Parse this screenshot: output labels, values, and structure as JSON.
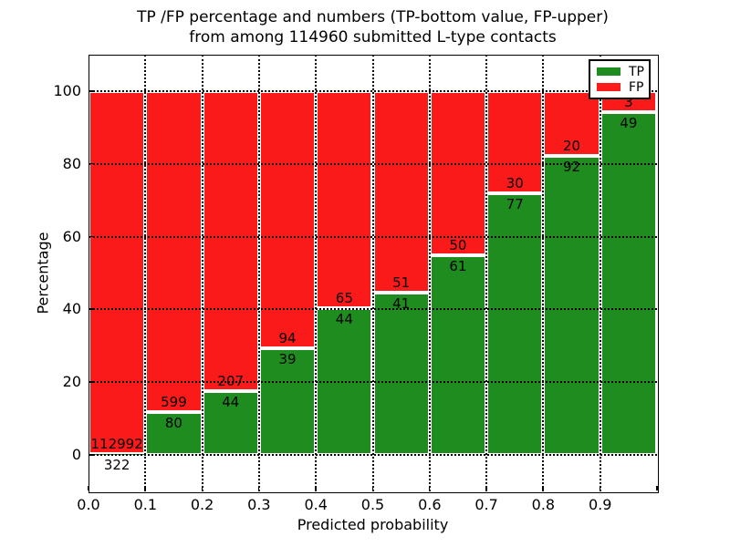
{
  "chart_data": {
    "type": "bar",
    "stacked": true,
    "normalized_to_percent": true,
    "title_line1": "TP /FP percentage and numbers (TP-bottom value, FP-upper)",
    "title_line2": "from among 114960 submitted L-type contacts",
    "xlabel": "Predicted probability",
    "ylabel": "Percentage",
    "total_contacts_shown_in_title": 114960,
    "bin_width": 0.1,
    "x_tick_labels": [
      "0.0",
      "0.1",
      "0.2",
      "0.3",
      "0.4",
      "0.5",
      "0.6",
      "0.7",
      "0.8",
      "0.9"
    ],
    "y_tick_values": [
      0,
      20,
      40,
      60,
      80,
      100
    ],
    "y_tick_labels": [
      "0",
      "20",
      "40",
      "60",
      "80",
      "100"
    ],
    "ylim": [
      -10,
      110
    ],
    "series": [
      {
        "name": "TP",
        "color": "#1e8c1e",
        "values": [
          322,
          80,
          44,
          39,
          44,
          41,
          61,
          77,
          92,
          49
        ]
      },
      {
        "name": "FP",
        "color": "#fa1a1a",
        "values": [
          112992,
          599,
          207,
          94,
          65,
          51,
          50,
          30,
          20,
          3
        ]
      }
    ],
    "legend": {
      "position": "upper right",
      "entries": [
        {
          "label": "TP",
          "color": "#1e8c1e"
        },
        {
          "label": "FP",
          "color": "#fa1a1a"
        }
      ]
    },
    "grid": {
      "visible": true,
      "line_style": "dotted",
      "color": "#000000"
    }
  }
}
